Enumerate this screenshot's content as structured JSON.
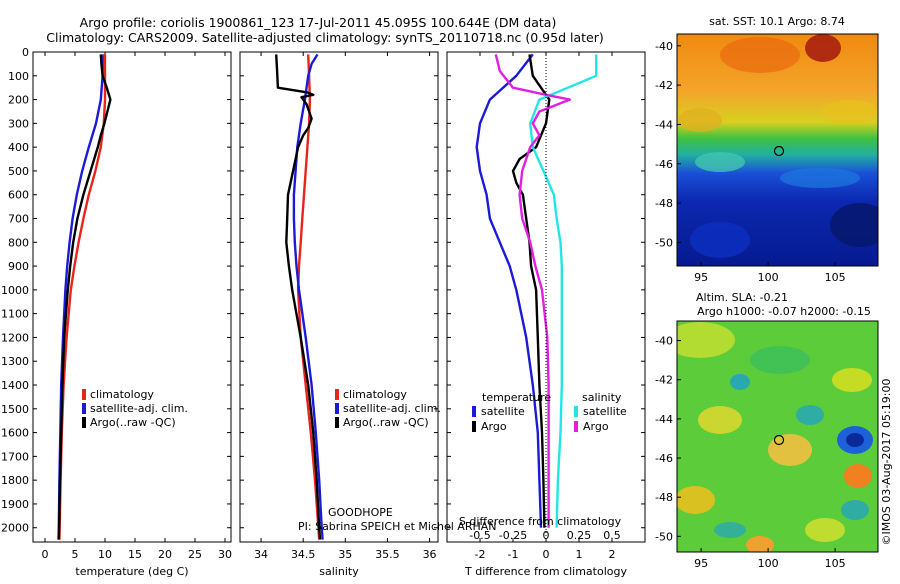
{
  "header": {
    "title_line1": "Argo profile: coriolis 1900861_123 17-Jul-2011 45.095S 100.644E (DM data)",
    "title_line2": "Climatology: CARS2009. Satellite-adjusted climatology: synTS_20110718.nc (0.95d later)"
  },
  "colors": {
    "climatology": "#e8241c",
    "satellite": "#1a1ad8",
    "argo": "#000000",
    "sal_satellite": "#22e6e6",
    "sal_argo": "#e21ee2"
  },
  "depth_ticks": [
    "0",
    "100",
    "200",
    "300",
    "400",
    "500",
    "600",
    "700",
    "800",
    "900",
    "1000",
    "1100",
    "1200",
    "1300",
    "1400",
    "1500",
    "1600",
    "1700",
    "1800",
    "1900",
    "2000"
  ],
  "chart_data": [
    {
      "type": "line",
      "title": "",
      "xlabel": "temperature (deg C)",
      "ylabel": "",
      "xlim": [
        -2,
        31
      ],
      "ylim": [
        2060,
        0
      ],
      "xticks": [
        "0",
        "5",
        "10",
        "15",
        "20",
        "25",
        "30"
      ],
      "legend": [
        "climatology",
        "satellite-adj. clim.",
        "Argo(..raw -QC)"
      ],
      "series": [
        {
          "name": "climatology",
          "color": "climatology",
          "depth": [
            10,
            100,
            200,
            300,
            400,
            500,
            600,
            700,
            800,
            900,
            1000,
            1200,
            1400,
            1600,
            1800,
            2000,
            2050
          ],
          "values": [
            10.0,
            10.0,
            10.0,
            9.8,
            9.3,
            8.4,
            7.3,
            6.4,
            5.6,
            4.9,
            4.3,
            3.6,
            3.1,
            2.8,
            2.6,
            2.45,
            2.4
          ]
        },
        {
          "name": "satellite-adj. clim.",
          "color": "satellite",
          "depth": [
            10,
            100,
            200,
            300,
            400,
            500,
            600,
            700,
            800,
            900,
            1000,
            1200,
            1400,
            1600,
            1800,
            2000,
            2050
          ],
          "values": [
            9.6,
            9.6,
            9.3,
            8.5,
            7.3,
            6.2,
            5.3,
            4.6,
            4.1,
            3.7,
            3.4,
            3.0,
            2.7,
            2.55,
            2.4,
            2.3,
            2.25
          ]
        },
        {
          "name": "Argo(..raw -QC)",
          "color": "argo",
          "depth": [
            10,
            50,
            100,
            150,
            200,
            250,
            300,
            350,
            400,
            500,
            600,
            700,
            800,
            900,
            1000,
            1200,
            1400,
            1600,
            1800,
            2000,
            2050
          ],
          "values": [
            9.3,
            9.4,
            9.6,
            10.3,
            10.9,
            10.4,
            9.9,
            9.3,
            8.8,
            7.6,
            6.4,
            5.4,
            4.7,
            4.2,
            3.8,
            3.2,
            2.9,
            2.7,
            2.5,
            2.35,
            2.3
          ]
        }
      ]
    },
    {
      "type": "line",
      "title": "",
      "xlabel": "salinity",
      "ylabel": "",
      "xlim": [
        33.75,
        36.1
      ],
      "ylim": [
        2060,
        0
      ],
      "xticks": [
        "34",
        "34.5",
        "35",
        "35.5",
        "36"
      ],
      "legend": [
        "climatology",
        "satellite-adj. clim.",
        "Argo(..raw -QC)"
      ],
      "annotation_line1": "GOODHOPE",
      "annotation_line2": "PI: Sabrina SPEICH et Michel ARHAN",
      "series": [
        {
          "name": "climatology",
          "color": "climatology",
          "depth": [
            10,
            100,
            200,
            300,
            400,
            500,
            600,
            700,
            800,
            900,
            1000,
            1200,
            1400,
            1600,
            1800,
            2000,
            2050
          ],
          "values": [
            34.56,
            34.57,
            34.58,
            34.57,
            34.55,
            34.53,
            34.51,
            34.49,
            34.47,
            34.45,
            34.44,
            34.47,
            34.53,
            34.59,
            34.64,
            34.68,
            34.69
          ]
        },
        {
          "name": "satellite-adj. clim.",
          "color": "satellite",
          "depth": [
            10,
            50,
            100,
            200,
            300,
            400,
            500,
            600,
            700,
            800,
            900,
            1000,
            1200,
            1400,
            1600,
            1800,
            2000,
            2050
          ],
          "values": [
            34.67,
            34.6,
            34.56,
            34.52,
            34.47,
            34.43,
            34.41,
            34.39,
            34.39,
            34.4,
            34.42,
            34.45,
            34.53,
            34.6,
            34.65,
            34.69,
            34.72,
            34.73
          ]
        },
        {
          "name": "Argo(..raw -QC)",
          "color": "argo",
          "depth": [
            10,
            80,
            150,
            170,
            180,
            190,
            220,
            280,
            320,
            350,
            400,
            500,
            600,
            700,
            800,
            900,
            1000,
            1200,
            1400,
            1600,
            1800,
            2000,
            2050
          ],
          "values": [
            34.18,
            34.19,
            34.2,
            34.55,
            34.62,
            34.48,
            34.54,
            34.6,
            34.56,
            34.5,
            34.44,
            34.38,
            34.32,
            34.31,
            34.3,
            34.33,
            34.37,
            34.47,
            34.56,
            34.62,
            34.66,
            34.69,
            34.7
          ]
        }
      ]
    },
    {
      "type": "line",
      "title": "",
      "xlabel": "T difference from climatology",
      "xlabel_top": "S difference from climatology",
      "ylabel": "",
      "xlim": [
        -3.0,
        3.0
      ],
      "xlim_s": [
        -0.75,
        0.75
      ],
      "ylim": [
        2060,
        0
      ],
      "xticks": [
        "-2",
        "-1",
        "0",
        "1",
        "2"
      ],
      "xticks_s": [
        "-0.5",
        "-0.25",
        "0",
        "0.25",
        "0.5"
      ],
      "legend_temperature": "temperature",
      "legend_salinity": "salinity",
      "legend_satellite": "satellite",
      "legend_argo": "Argo",
      "series": [
        {
          "name": "temperature satellite",
          "color": "satellite",
          "depth": [
            10,
            100,
            200,
            300,
            400,
            500,
            600,
            700,
            800,
            900,
            1000,
            1200,
            1400,
            1600,
            1800,
            2000
          ],
          "values": [
            -0.4,
            -0.9,
            -1.7,
            -2.0,
            -2.1,
            -2.0,
            -1.8,
            -1.7,
            -1.4,
            -1.1,
            -0.9,
            -0.6,
            -0.4,
            -0.25,
            -0.2,
            -0.15
          ]
        },
        {
          "name": "temperature Argo",
          "color": "argo",
          "depth": [
            10,
            100,
            200,
            300,
            400,
            450,
            500,
            550,
            600,
            700,
            800,
            900,
            1000,
            1200,
            1400,
            1600,
            1800,
            2000
          ],
          "values": [
            -0.5,
            -0.4,
            0.1,
            0.0,
            -0.3,
            -0.8,
            -1.0,
            -0.9,
            -0.7,
            -0.6,
            -0.5,
            -0.45,
            -0.3,
            -0.25,
            -0.2,
            -0.12,
            -0.08,
            -0.05
          ]
        },
        {
          "name": "salinity satellite",
          "color": "sal_satellite",
          "depth": [
            10,
            100,
            200,
            300,
            400,
            500,
            600,
            700,
            800,
            900,
            1000,
            1200,
            1400,
            1600,
            1800,
            2000
          ],
          "values": [
            0.38,
            0.38,
            -0.05,
            -0.12,
            -0.1,
            -0.02,
            0.06,
            0.08,
            0.11,
            0.12,
            0.12,
            0.12,
            0.12,
            0.11,
            0.09,
            0.08
          ]
        },
        {
          "name": "salinity Argo",
          "color": "sal_argo",
          "depth": [
            10,
            80,
            150,
            180,
            200,
            250,
            300,
            350,
            400,
            500,
            600,
            700,
            800,
            900,
            1000,
            1200,
            1400,
            1600,
            1800,
            2000
          ],
          "values": [
            -0.38,
            -0.35,
            -0.25,
            0.0,
            0.18,
            -0.05,
            -0.1,
            -0.05,
            -0.12,
            -0.18,
            -0.2,
            -0.18,
            -0.12,
            -0.08,
            -0.03,
            0.01,
            0.02,
            0.02,
            0.02,
            0.02
          ]
        }
      ]
    }
  ],
  "maps": {
    "top_title": "sat. SST: 10.1  Argo: 8.74",
    "bottom_title_line1": "Altim. SLA: -0.21",
    "bottom_title_line2": "Argo h1000: -0.07 h2000: -0.15",
    "lat_ticks": [
      "-40",
      "-42",
      "-44",
      "-46",
      "-48",
      "-50"
    ],
    "lon_ticks": [
      "95",
      "100",
      "105"
    ],
    "watermark": "©IMOS 03-Aug-2017 05:19:00"
  }
}
